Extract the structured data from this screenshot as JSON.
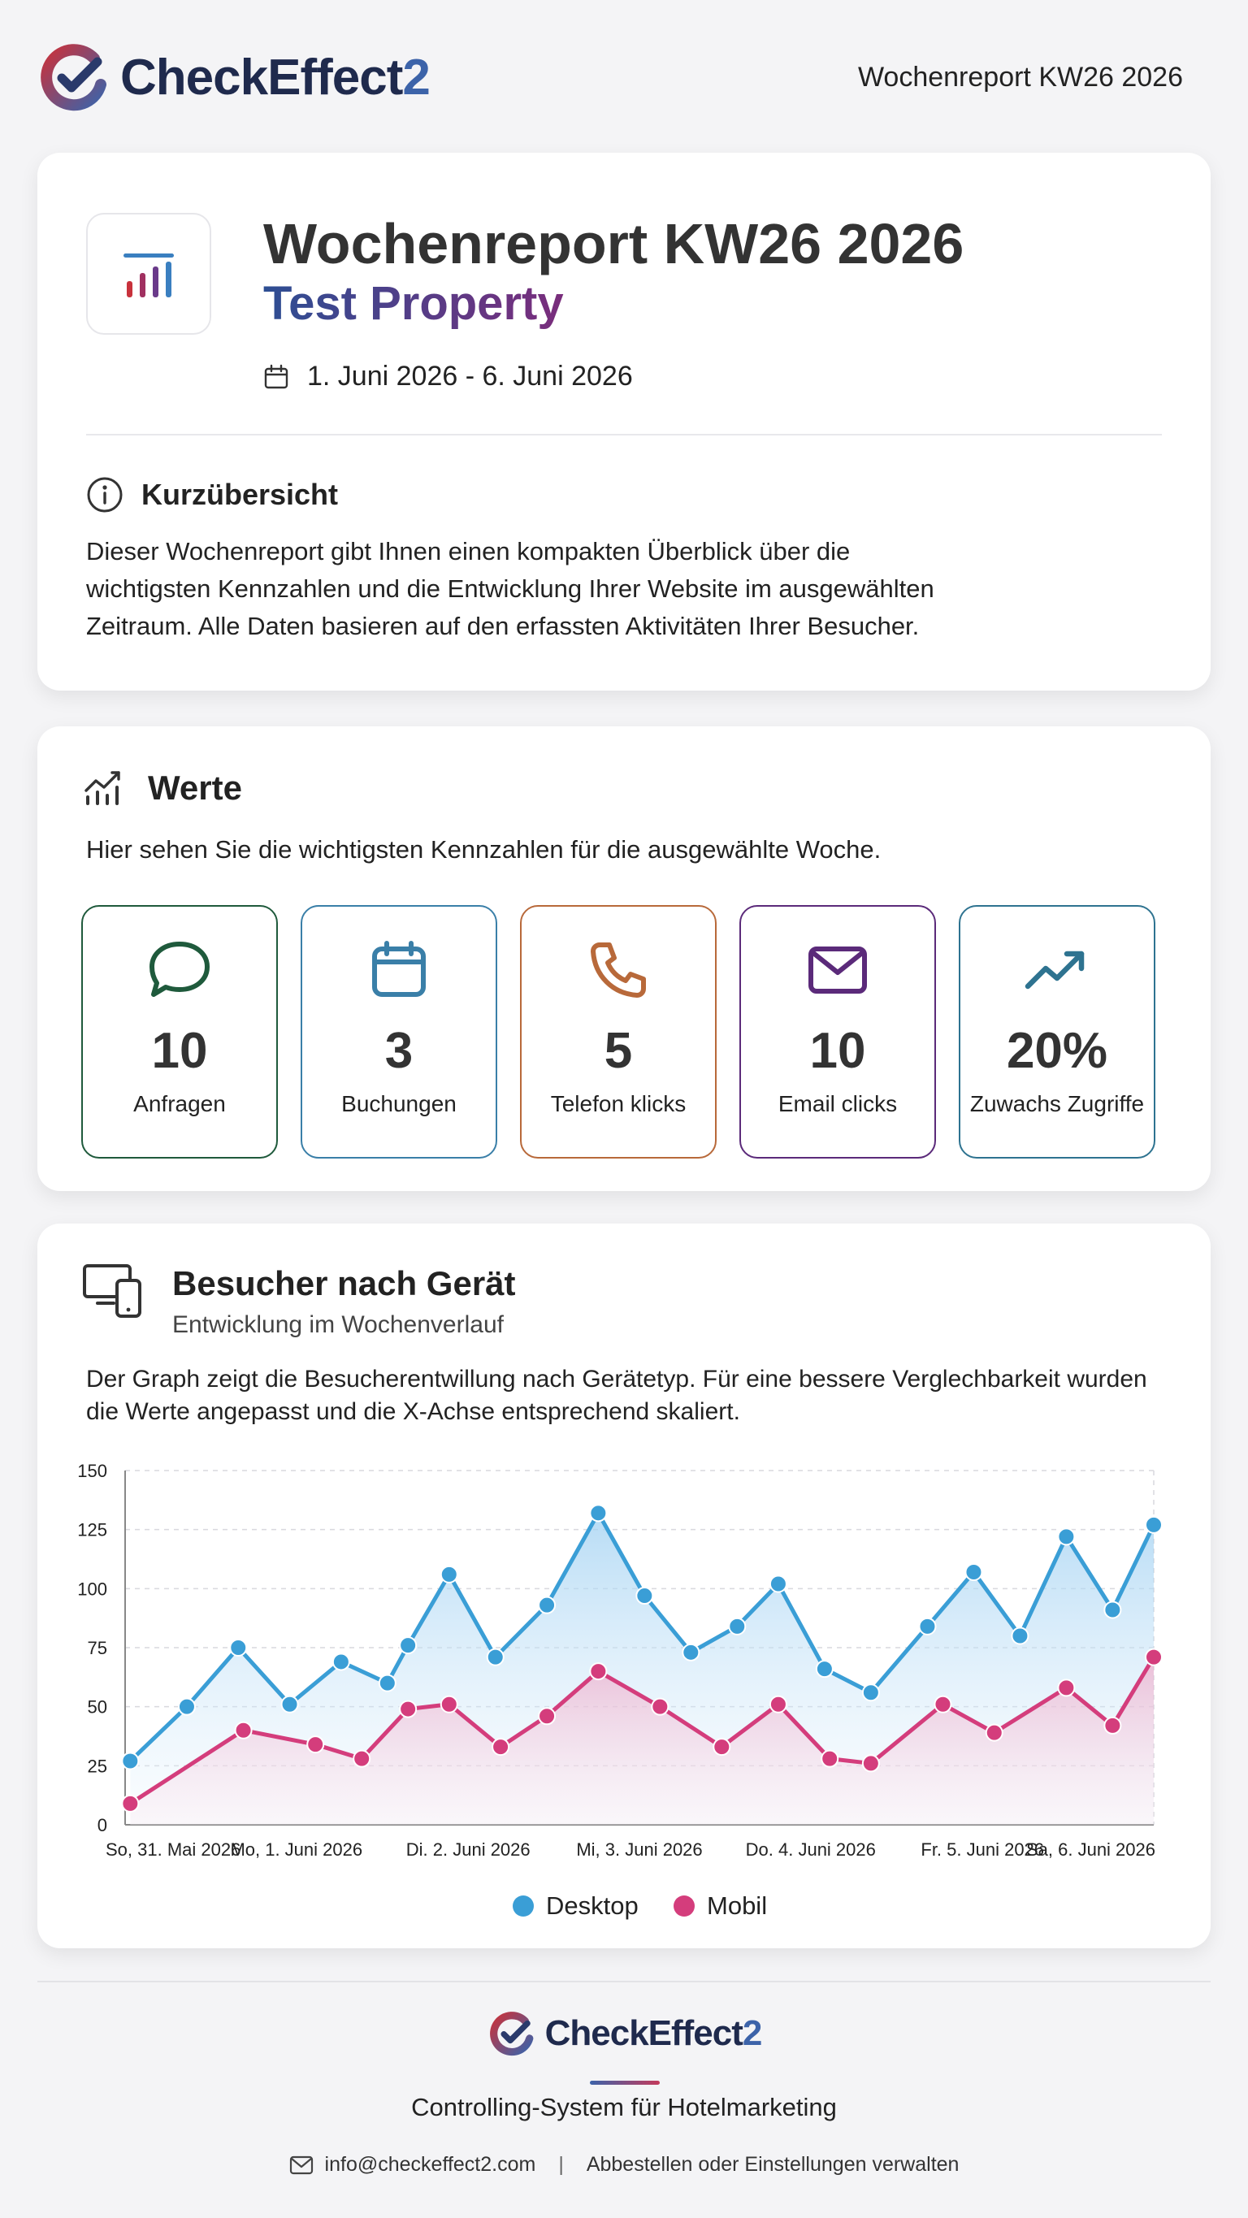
{
  "header": {
    "brand_name": "CheckEffect",
    "brand_suffix": "2",
    "report_label": "Wochenreport KW26 2026"
  },
  "report": {
    "title": "Wochenreport KW26 2026",
    "property": "Test Property",
    "date_range": "1. Juni 2026 - 6. Juni 2026",
    "overview_heading": "Kurzübersicht",
    "overview_text": "Dieser Wochenreport gibt Ihnen einen kompakten Überblick über die wichtigsten Kennzahlen und die Entwicklung Ihrer Website im ausgewählten Zeitraum. Alle Daten basieren auf den erfassten Aktivitäten Ihrer Besucher."
  },
  "werte": {
    "heading": "Werte",
    "description": "Hier sehen Sie die wichtigsten Kennzahlen für die ausgewählte Woche.",
    "kpis": [
      {
        "value": "10",
        "label": "Anfragen",
        "icon": "chat-icon",
        "color": "#1f5a3c"
      },
      {
        "value": "3",
        "label": "Buchungen",
        "icon": "calendar-icon",
        "color": "#3a7fa8"
      },
      {
        "value": "5",
        "label": "Telefon klicks",
        "icon": "phone-icon",
        "color": "#b8693a"
      },
      {
        "value": "10",
        "label": "Email clicks",
        "icon": "mail-icon",
        "color": "#5b2a7a"
      },
      {
        "value": "20%",
        "label": "Zuwachs Zugriffe",
        "icon": "trend-up-icon",
        "color": "#2e7390"
      }
    ]
  },
  "devices": {
    "heading": "Besucher nach Gerät",
    "subheading": "Entwicklung im Wochenverlauf",
    "description": "Der Graph zeigt die Besucherentwillung nach Gerätetyp. Für eine bessere Verglechbarkeit wurden die Werte angepasst und die X-Achse entsprechend skaliert."
  },
  "chart_data": {
    "type": "area",
    "x": [
      0,
      0.5,
      1,
      1.5,
      2,
      2.5,
      3,
      3.5,
      4,
      4.5,
      5,
      5.5,
      6,
      6.5,
      7,
      7.5,
      8,
      8.5,
      9,
      9.5,
      10,
      10.5,
      11,
      11.5,
      12,
      12.5,
      13,
      13.5,
      14,
      14.5,
      15,
      15.5,
      16,
      16.5,
      17,
      17.5,
      18,
      18.5,
      19,
      19.5,
      20
    ],
    "tick_labels": [
      "So, 31. Mai 2026",
      "Mo, 1. Juni 2026",
      "Di. 2. Juni 2026",
      "Mi, 3. Juni 2026",
      "Do. 4. Juni 2026",
      "Fr. 5. Juni 2026",
      "Sa, 6. Juni 2026"
    ],
    "tick_positions": [
      0,
      3.33,
      6.67,
      10,
      13.33,
      16.67,
      20
    ],
    "ylim": [
      0,
      150
    ],
    "yticks": [
      0,
      25,
      50,
      75,
      100,
      125,
      150
    ],
    "grid": true,
    "legend_position": "bottom-center",
    "series": [
      {
        "name": "Desktop",
        "color": "#3a9ed6",
        "points": [
          [
            0.1,
            27
          ],
          [
            1.2,
            50
          ],
          [
            2.2,
            75
          ],
          [
            3.2,
            51
          ],
          [
            4.2,
            69
          ],
          [
            5.1,
            60
          ],
          [
            5.5,
            76
          ],
          [
            6.3,
            106
          ],
          [
            7.2,
            71
          ],
          [
            8.2,
            93
          ],
          [
            9.2,
            132
          ],
          [
            10.1,
            97
          ],
          [
            11,
            73
          ],
          [
            11.9,
            84
          ],
          [
            12.7,
            102
          ],
          [
            13.6,
            66
          ],
          [
            14.5,
            56
          ],
          [
            15.6,
            84
          ],
          [
            16.5,
            107
          ],
          [
            17.4,
            80
          ],
          [
            18.3,
            122
          ],
          [
            19.2,
            91
          ],
          [
            20.0,
            127
          ]
        ]
      },
      {
        "name": "Mobil",
        "color": "#d43d7c",
        "points": [
          [
            0.1,
            9
          ],
          [
            2.3,
            40
          ],
          [
            3.7,
            34
          ],
          [
            4.6,
            28
          ],
          [
            5.5,
            49
          ],
          [
            6.3,
            51
          ],
          [
            7.3,
            33
          ],
          [
            8.2,
            46
          ],
          [
            9.2,
            65
          ],
          [
            10.4,
            50
          ],
          [
            11.6,
            33
          ],
          [
            12.7,
            51
          ],
          [
            13.7,
            28
          ],
          [
            14.5,
            26
          ],
          [
            15.9,
            51
          ],
          [
            16.9,
            39
          ],
          [
            18.3,
            58
          ],
          [
            19.2,
            42
          ],
          [
            20.0,
            71
          ]
        ]
      }
    ]
  },
  "footer": {
    "tagline": "Controlling-System für Hotelmarketing",
    "email": "info@checkeffect2.com",
    "separator": "|",
    "manage_link": "Abbestellen oder Einstellungen verwalten"
  }
}
